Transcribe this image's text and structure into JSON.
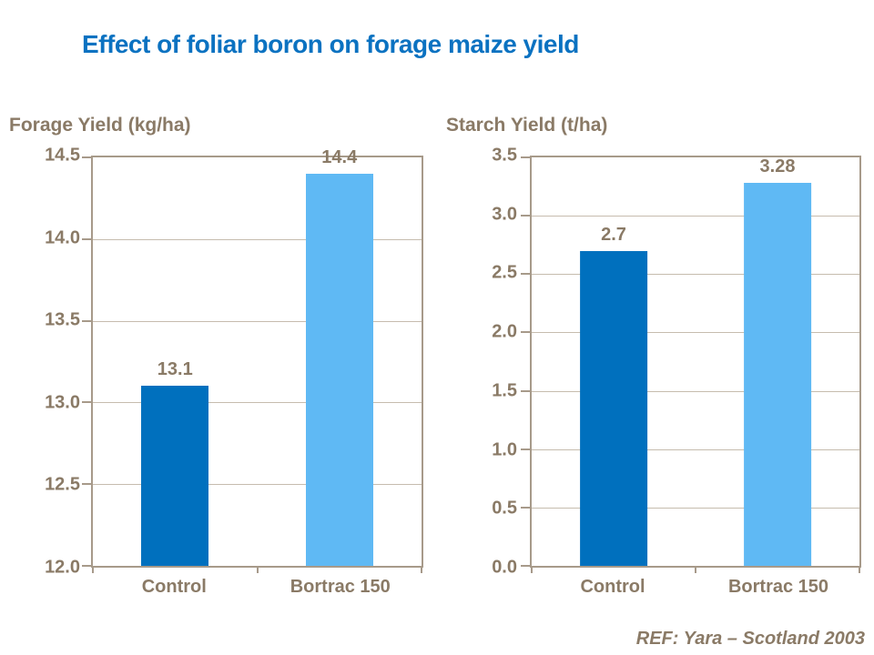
{
  "page": {
    "title": "Effect of foliar boron on forage maize yield",
    "ref": "REF: Yara – Scotland 2003"
  },
  "colors": {
    "title": "#0b72c1",
    "axis_text": "#8a7a66",
    "frame": "#a79a8a",
    "gridline": "#c6bcae",
    "bar_dark_blue": "#0070be",
    "bar_light_blue": "#5fb9f4"
  },
  "chart_data": [
    {
      "type": "bar",
      "title": "Forage Yield (kg/ha)",
      "categories": [
        "Control",
        "Bortrac 150"
      ],
      "values": [
        13.1,
        14.4
      ],
      "value_labels": [
        "13.1",
        "14.4"
      ],
      "bar_colors": [
        "#0070be",
        "#5fb9f4"
      ],
      "ylim": [
        12.0,
        14.5
      ],
      "ytick_step": 0.5,
      "ytick_labels": [
        "12.0",
        "12.5",
        "13.0",
        "13.5",
        "14.0",
        "14.5"
      ],
      "grid": true,
      "legend": "none"
    },
    {
      "type": "bar",
      "title": "Starch Yield (t/ha)",
      "categories": [
        "Control",
        "Bortrac 150"
      ],
      "values": [
        2.7,
        3.28
      ],
      "value_labels": [
        "2.7",
        "3.28"
      ],
      "bar_colors": [
        "#0070be",
        "#5fb9f4"
      ],
      "ylim": [
        0.0,
        3.5
      ],
      "ytick_step": 0.5,
      "ytick_labels": [
        "0.0",
        "0.5",
        "1.0",
        "1.5",
        "2.0",
        "2.5",
        "3.0",
        "3.5"
      ],
      "grid": true,
      "legend": "none"
    }
  ]
}
